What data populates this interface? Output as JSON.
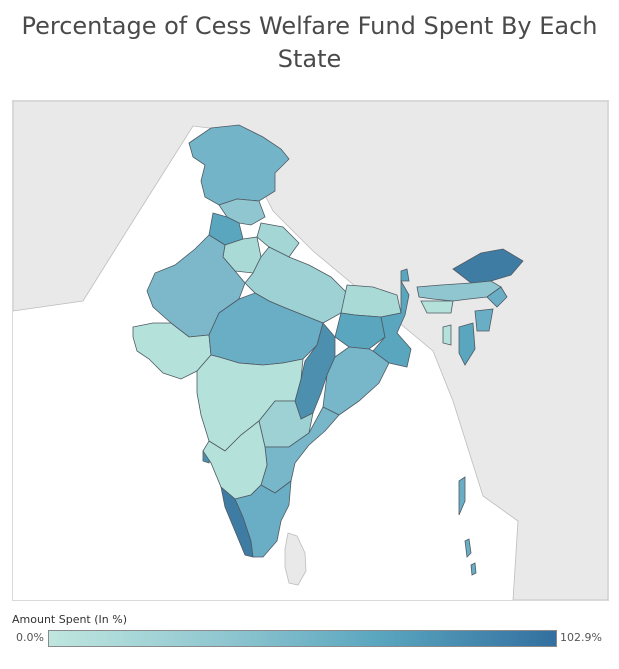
{
  "title": "Percentage of Cess Welfare Fund Spent By Each State",
  "legend": {
    "title": "Amount Spent (In %)",
    "min_label": "0.0%",
    "max_label": "102.9%",
    "color_low": "#bfe6df",
    "color_high": "#336fa0"
  },
  "colors": {
    "land": "#e9e9e9",
    "sea": "#ffffff",
    "border": "#9a9a9a",
    "state_border": "#4f5a63"
  }
}
